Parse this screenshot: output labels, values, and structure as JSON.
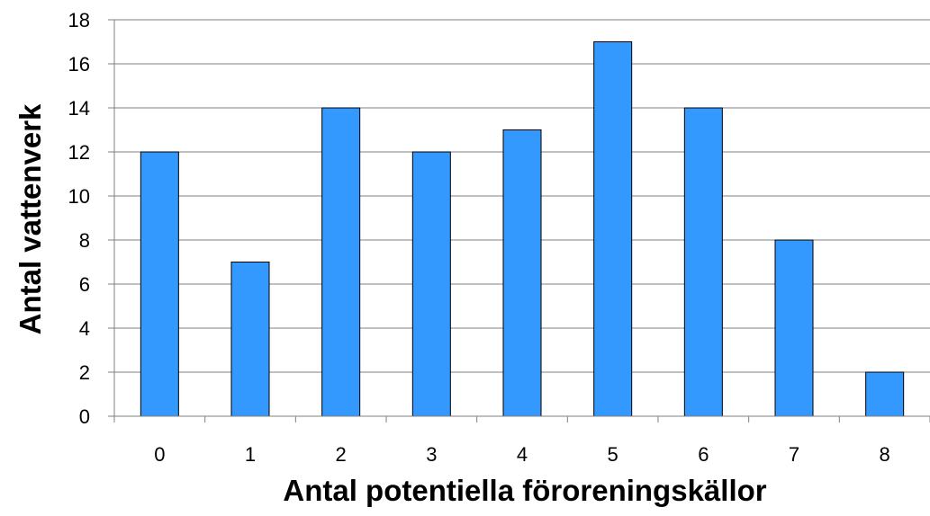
{
  "chart_data": {
    "type": "bar",
    "title": "",
    "xlabel": "Antal potentiella föroreningskällor",
    "ylabel": "Antal vattenverk",
    "categories": [
      "0",
      "1",
      "2",
      "3",
      "4",
      "5",
      "6",
      "7",
      "8"
    ],
    "values": [
      12,
      7,
      14,
      12,
      13,
      17,
      14,
      8,
      2
    ],
    "ylim": [
      0,
      18
    ],
    "yticks": [
      0,
      2,
      4,
      6,
      8,
      10,
      12,
      14,
      16,
      18
    ],
    "grid": "horizontal",
    "legend": "none",
    "bar_color": "#3399FF",
    "bar_edge_color": "#000000"
  }
}
